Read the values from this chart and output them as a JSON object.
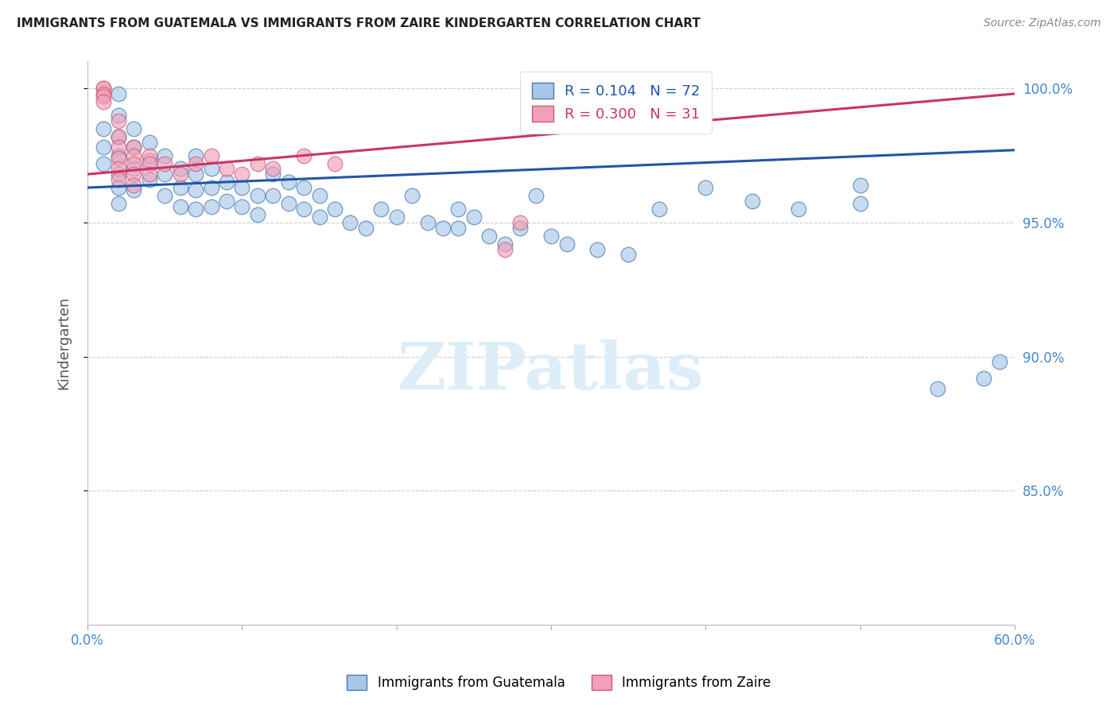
{
  "title": "IMMIGRANTS FROM GUATEMALA VS IMMIGRANTS FROM ZAIRE KINDERGARTEN CORRELATION CHART",
  "source": "Source: ZipAtlas.com",
  "ylabel": "Kindergarten",
  "xlim": [
    0.0,
    0.6
  ],
  "ylim": [
    0.8,
    1.01
  ],
  "xticks": [
    0.0,
    0.1,
    0.2,
    0.3,
    0.4,
    0.5,
    0.6
  ],
  "xticklabels": [
    "0.0%",
    "",
    "",
    "",
    "",
    "",
    "60.0%"
  ],
  "yticks": [
    0.85,
    0.9,
    0.95,
    1.0
  ],
  "yticklabels": [
    "85.0%",
    "90.0%",
    "95.0%",
    "100.0%"
  ],
  "legend_blue_label": "Immigrants from Guatemala",
  "legend_pink_label": "Immigrants from Zaire",
  "R_blue": 0.104,
  "N_blue": 72,
  "R_pink": 0.3,
  "N_pink": 31,
  "blue_fill": "#a8c8e8",
  "pink_fill": "#f0a0b8",
  "blue_edge": "#4878b0",
  "pink_edge": "#d05878",
  "blue_line_color": "#2255aa",
  "pink_line_color": "#cc3366",
  "axis_tick_color": "#4488cc",
  "grid_color": "#cccccc",
  "watermark_color": "#ddeef8",
  "blue_scatter_x": [
    0.01,
    0.01,
    0.01,
    0.02,
    0.02,
    0.02,
    0.02,
    0.02,
    0.02,
    0.02,
    0.03,
    0.03,
    0.03,
    0.03,
    0.04,
    0.04,
    0.04,
    0.05,
    0.05,
    0.05,
    0.06,
    0.06,
    0.06,
    0.07,
    0.07,
    0.07,
    0.07,
    0.08,
    0.08,
    0.08,
    0.09,
    0.09,
    0.1,
    0.1,
    0.11,
    0.11,
    0.12,
    0.12,
    0.13,
    0.13,
    0.14,
    0.14,
    0.15,
    0.15,
    0.16,
    0.17,
    0.18,
    0.19,
    0.2,
    0.21,
    0.22,
    0.23,
    0.24,
    0.24,
    0.25,
    0.26,
    0.27,
    0.28,
    0.29,
    0.3,
    0.31,
    0.33,
    0.35,
    0.37,
    0.4,
    0.43,
    0.46,
    0.5,
    0.5,
    0.55,
    0.58,
    0.59
  ],
  "blue_scatter_y": [
    0.985,
    0.978,
    0.972,
    0.998,
    0.99,
    0.982,
    0.975,
    0.968,
    0.963,
    0.957,
    0.985,
    0.978,
    0.97,
    0.962,
    0.98,
    0.973,
    0.966,
    0.975,
    0.968,
    0.96,
    0.97,
    0.963,
    0.956,
    0.975,
    0.968,
    0.962,
    0.955,
    0.97,
    0.963,
    0.956,
    0.965,
    0.958,
    0.963,
    0.956,
    0.96,
    0.953,
    0.968,
    0.96,
    0.965,
    0.957,
    0.963,
    0.955,
    0.96,
    0.952,
    0.955,
    0.95,
    0.948,
    0.955,
    0.952,
    0.96,
    0.95,
    0.948,
    0.955,
    0.948,
    0.952,
    0.945,
    0.942,
    0.948,
    0.96,
    0.945,
    0.942,
    0.94,
    0.938,
    0.955,
    0.963,
    0.958,
    0.955,
    0.964,
    0.957,
    0.888,
    0.892,
    0.898
  ],
  "pink_scatter_x": [
    0.01,
    0.01,
    0.01,
    0.01,
    0.01,
    0.02,
    0.02,
    0.02,
    0.02,
    0.02,
    0.02,
    0.03,
    0.03,
    0.03,
    0.03,
    0.03,
    0.04,
    0.04,
    0.04,
    0.05,
    0.06,
    0.07,
    0.08,
    0.09,
    0.1,
    0.11,
    0.12,
    0.14,
    0.16,
    0.27,
    0.28
  ],
  "pink_scatter_y": [
    1.0,
    1.0,
    0.998,
    0.997,
    0.995,
    0.988,
    0.982,
    0.978,
    0.974,
    0.97,
    0.966,
    0.978,
    0.975,
    0.972,
    0.968,
    0.964,
    0.975,
    0.972,
    0.968,
    0.972,
    0.968,
    0.972,
    0.975,
    0.97,
    0.968,
    0.972,
    0.97,
    0.975,
    0.972,
    0.94,
    0.95
  ],
  "blue_line_x0": 0.0,
  "blue_line_x1": 0.6,
  "blue_line_y0": 0.963,
  "blue_line_y1": 0.977,
  "pink_line_x0": 0.0,
  "pink_line_x1": 0.6,
  "pink_line_y0": 0.968,
  "pink_line_y1": 0.998
}
